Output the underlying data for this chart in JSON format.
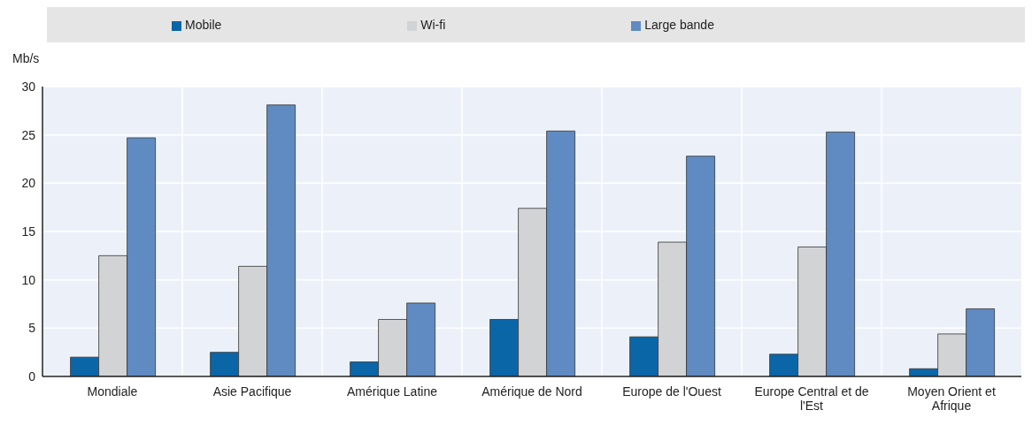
{
  "chart_data": {
    "type": "bar",
    "ylabel": "Mb/s",
    "categories": [
      "Mondiale",
      "Asie Pacifique",
      "Amérique Latine",
      "Amérique de Nord",
      "Europe de l'Ouest",
      "Europe Central et de l'Est",
      "Moyen Orient et Afrique"
    ],
    "series": [
      {
        "name": "Mobile",
        "color": "#0b66a8",
        "values": [
          2.0,
          2.5,
          1.5,
          5.9,
          4.1,
          2.3,
          0.8
        ]
      },
      {
        "name": "Wi-fi",
        "color": "#d2d3d5",
        "values": [
          12.5,
          11.4,
          5.9,
          17.4,
          13.9,
          13.4,
          4.4
        ]
      },
      {
        "name": "Large bande",
        "color": "#5f8bc2",
        "values": [
          24.7,
          28.1,
          7.6,
          25.4,
          22.8,
          25.3,
          7.0
        ]
      }
    ],
    "ylim": [
      0,
      30
    ],
    "yticks": [
      0,
      5,
      10,
      15,
      20,
      25,
      30
    ],
    "grid": true,
    "legend": "top"
  }
}
